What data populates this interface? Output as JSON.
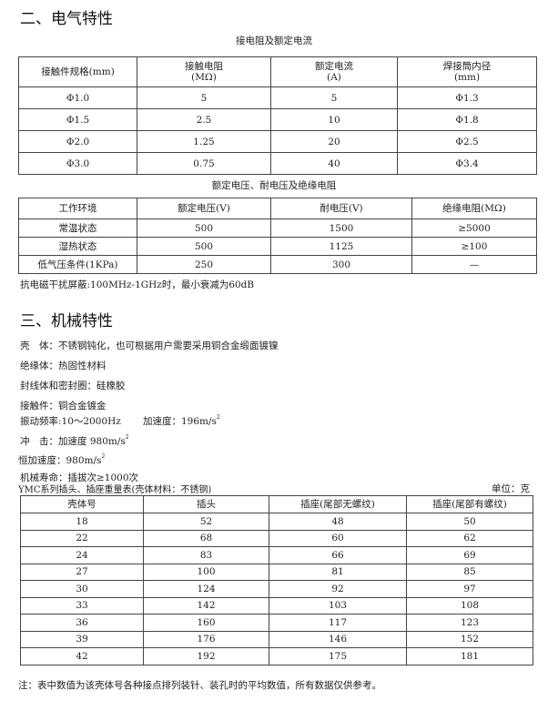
{
  "section2": {
    "heading": "二、电气特性",
    "table1": {
      "caption": "接电阻及额定电流",
      "headers": [
        [
          "接触件规格(mm)"
        ],
        [
          "接触电阻",
          "(MΩ)"
        ],
        [
          "额定电流",
          "(A)"
        ],
        [
          "焊接筒内径",
          "(mm)"
        ]
      ],
      "rows": [
        [
          "Φ1.0",
          "5",
          "5",
          "Φ1.3"
        ],
        [
          "Φ1.5",
          "2.5",
          "10",
          "Φ1.8"
        ],
        [
          "Φ2.0",
          "1.25",
          "20",
          "Φ2.5"
        ],
        [
          "Φ3.0",
          "0.75",
          "40",
          "Φ3.4"
        ]
      ]
    },
    "table2": {
      "caption": "额定电压、耐电压及绝缘电阻",
      "headers": [
        "工作环境",
        "额定电压(V)",
        "耐电压(V)",
        "绝缘电阻(MΩ)"
      ],
      "rows": [
        [
          "常温状态",
          "500",
          "1500",
          "≥5000"
        ],
        [
          "湿热状态",
          "500",
          "1125",
          "≥100"
        ],
        [
          "低气压条件(1KPa)",
          "250",
          "300",
          "—"
        ]
      ]
    },
    "note": "抗电磁干扰屏蔽:100MHz-1GHz时，最小衰减为60dB"
  },
  "section3": {
    "heading": "三、机械特性",
    "lines": [
      "壳　体：不锈钢钝化，也可根据用户需要采用铜合金缎面镀镍",
      "绝缘体：热固性材料",
      "封线体和密封圈：硅橡胶",
      "接触件：铜合金镀金"
    ],
    "vibration": "振动频率:10～2000Hz",
    "vibration_accel": "加速度：196m/s",
    "shock": "冲　击：加速度 980m/s",
    "constant_accel": "恒加速度：980m/s",
    "exponent": "2",
    "life": "机械寿命：插拔次≥1000次",
    "table3": {
      "caption": "YMC系列插头、插座重量表(壳体材料：不锈钢)",
      "unit": "单位：克",
      "headers": [
        "壳体号",
        "插头",
        "插座(尾部无螺纹)",
        "插座(尾部有螺纹)"
      ],
      "rows": [
        [
          "18",
          "52",
          "48",
          "50"
        ],
        [
          "22",
          "68",
          "60",
          "62"
        ],
        [
          "24",
          "83",
          "66",
          "69"
        ],
        [
          "27",
          "100",
          "81",
          "85"
        ],
        [
          "30",
          "124",
          "92",
          "97"
        ],
        [
          "33",
          "142",
          "103",
          "108"
        ],
        [
          "36",
          "160",
          "117",
          "123"
        ],
        [
          "39",
          "176",
          "146",
          "152"
        ],
        [
          "42",
          "192",
          "175",
          "181"
        ]
      ]
    },
    "footnote": "注：表中数值为该壳体号各种接点排列装针、装孔时的平均数值，所有数据仅供参考。"
  }
}
